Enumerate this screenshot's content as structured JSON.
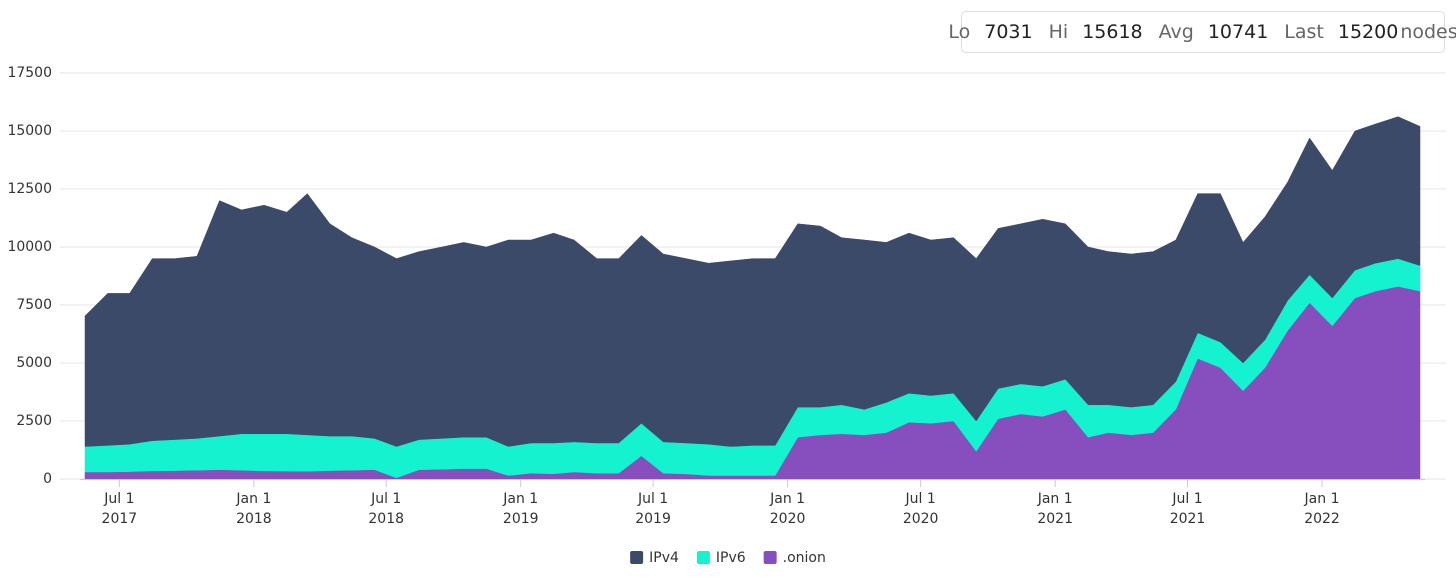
{
  "chart_data": {
    "type": "area",
    "stacked": true,
    "stats": [
      {
        "label": "Lo",
        "value": 7031
      },
      {
        "label": "Hi",
        "value": 15618
      },
      {
        "label": "Avg",
        "value": 10741
      },
      {
        "label": "Last",
        "value": 15200
      }
    ],
    "stats_unit": "nodes",
    "x": [
      "2017-05-15",
      "2017-06-15",
      "2017-07-15",
      "2017-08-15",
      "2017-09-15",
      "2017-10-15",
      "2017-11-15",
      "2017-12-15",
      "2018-01-15",
      "2018-02-15",
      "2018-03-15",
      "2018-04-15",
      "2018-05-15",
      "2018-06-15",
      "2018-07-15",
      "2018-08-15",
      "2018-09-15",
      "2018-10-15",
      "2018-11-15",
      "2018-12-15",
      "2019-01-15",
      "2019-02-15",
      "2019-03-15",
      "2019-04-15",
      "2019-05-15",
      "2019-06-15",
      "2019-07-15",
      "2019-08-15",
      "2019-09-15",
      "2019-10-15",
      "2019-11-15",
      "2019-12-15",
      "2020-01-15",
      "2020-02-15",
      "2020-03-15",
      "2020-04-15",
      "2020-05-15",
      "2020-06-15",
      "2020-07-15",
      "2020-08-15",
      "2020-09-15",
      "2020-10-15",
      "2020-11-15",
      "2020-12-15",
      "2021-01-15",
      "2021-02-15",
      "2021-03-15",
      "2021-04-15",
      "2021-05-15",
      "2021-06-15",
      "2021-07-15",
      "2021-08-15",
      "2021-09-15",
      "2021-10-15",
      "2021-11-15",
      "2021-12-15",
      "2022-01-15",
      "2022-02-15",
      "2022-03-15",
      "2022-04-15",
      "2022-05-15"
    ],
    "xlim": [
      "2017-05-15",
      "2022-05-15"
    ],
    "xticks": [
      {
        "value": "2017-07-01",
        "label": [
          "Jul 1",
          "2017"
        ]
      },
      {
        "value": "2018-01-01",
        "label": [
          "Jan 1",
          "2018"
        ]
      },
      {
        "value": "2018-07-01",
        "label": [
          "Jul 1",
          "2018"
        ]
      },
      {
        "value": "2019-01-01",
        "label": [
          "Jan 1",
          "2019"
        ]
      },
      {
        "value": "2019-07-01",
        "label": [
          "Jul 1",
          "2019"
        ]
      },
      {
        "value": "2020-01-01",
        "label": [
          "Jan 1",
          "2020"
        ]
      },
      {
        "value": "2020-07-01",
        "label": [
          "Jul 1",
          "2020"
        ]
      },
      {
        "value": "2021-01-01",
        "label": [
          "Jan 1",
          "2021"
        ]
      },
      {
        "value": "2021-07-01",
        "label": [
          "Jul 1",
          "2021"
        ]
      },
      {
        "value": "2022-01-01",
        "label": [
          "Jan 1",
          "2022"
        ]
      }
    ],
    "ylim": [
      0,
      17500
    ],
    "yticks": [
      0,
      2500,
      5000,
      7500,
      10000,
      12500,
      15000,
      17500
    ],
    "grid": true,
    "legend": "bottom",
    "series": [
      {
        "name": "IPv4",
        "color": "#3b4a68",
        "values": [
          5631,
          6550,
          6500,
          7850,
          7800,
          7850,
          10150,
          9650,
          9850,
          9550,
          10400,
          9150,
          8550,
          8250,
          8100,
          8100,
          8250,
          8400,
          8200,
          8900,
          8750,
          9050,
          8700,
          7950,
          7950,
          8100,
          8100,
          7950,
          7800,
          8000,
          8050,
          8050,
          7900,
          7800,
          7200,
          7300,
          6900,
          6900,
          6700,
          6700,
          7000,
          6900,
          6900,
          7200,
          6700,
          6800,
          6600,
          6600,
          6600,
          6100,
          6000,
          6400,
          5200,
          5300,
          5100,
          5900,
          5500,
          6000,
          6000,
          6118,
          6000
        ]
      },
      {
        "name": "IPv6",
        "color": "#14f2cf",
        "values": [
          1100,
          1150,
          1180,
          1300,
          1340,
          1370,
          1450,
          1570,
          1600,
          1610,
          1570,
          1490,
          1470,
          1350,
          1350,
          1300,
          1330,
          1350,
          1350,
          1250,
          1300,
          1320,
          1300,
          1300,
          1300,
          1400,
          1350,
          1330,
          1350,
          1250,
          1300,
          1300,
          1300,
          1200,
          1250,
          1100,
          1300,
          1250,
          1200,
          1200,
          1300,
          1300,
          1300,
          1300,
          1300,
          1400,
          1200,
          1200,
          1200,
          1200,
          1100,
          1100,
          1200,
          1200,
          1300,
          1200,
          1200,
          1200,
          1200,
          1200,
          1100
        ]
      },
      {
        "name": ".onion",
        "color": "#874fbd",
        "values": [
          300,
          300,
          320,
          350,
          360,
          380,
          400,
          380,
          350,
          340,
          330,
          360,
          380,
          400,
          50,
          400,
          420,
          450,
          450,
          150,
          250,
          230,
          300,
          250,
          250,
          1000,
          250,
          220,
          150,
          150,
          150,
          150,
          1800,
          1900,
          1950,
          1900,
          2000,
          2450,
          2400,
          2500,
          1200,
          2600,
          2800,
          2700,
          3000,
          1800,
          2000,
          1900,
          2000,
          3000,
          5200,
          4800,
          3800,
          4800,
          6400,
          7600,
          6600,
          7800,
          8100,
          8300,
          8100
        ]
      }
    ]
  }
}
